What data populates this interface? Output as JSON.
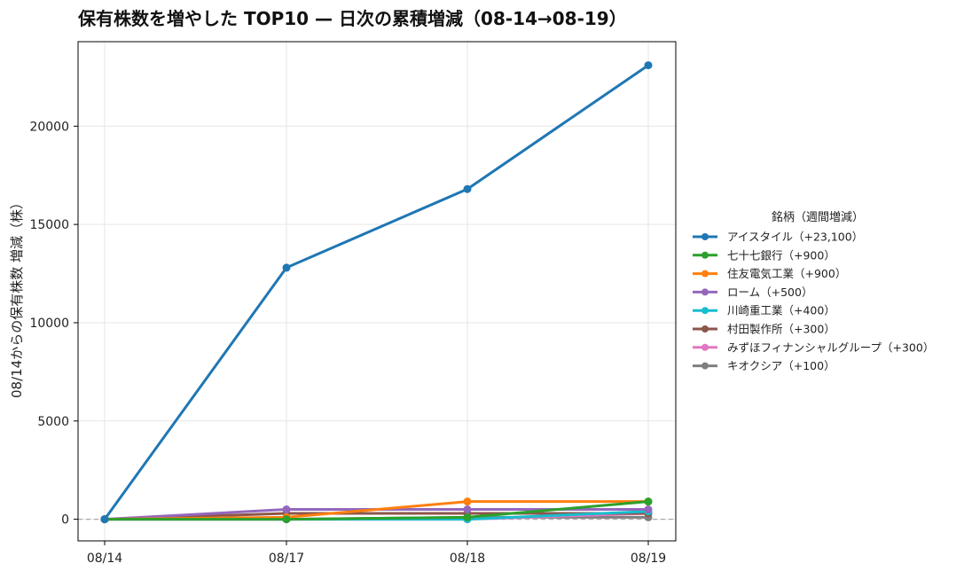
{
  "chart_data": {
    "type": "line",
    "title": "保有株数を増やした TOP10 — 日次の累積増減（08-14→08-19）",
    "xlabel": "",
    "ylabel": "08/14からの保有株数 増減（株）",
    "categories": [
      "08/14",
      "08/17",
      "08/18",
      "08/19"
    ],
    "y_ticks": [
      0,
      5000,
      10000,
      15000,
      20000
    ],
    "ylim": [
      -1100,
      24300
    ],
    "grid": true,
    "zero_line": true,
    "legend_title": "銘柄（週間増減）",
    "legend_placement": "right",
    "series": [
      {
        "name": "アイスタイル（+23,100）",
        "color": "#1f77b4",
        "values": [
          0,
          12800,
          16800,
          23100
        ]
      },
      {
        "name": "七十七銀行（+900）",
        "color": "#2ca02c",
        "values": [
          0,
          0,
          100,
          900
        ]
      },
      {
        "name": "住友電気工業（+900）",
        "color": "#ff7f0e",
        "values": [
          0,
          100,
          900,
          900
        ]
      },
      {
        "name": "ローム（+500）",
        "color": "#9467bd",
        "values": [
          0,
          500,
          500,
          500
        ]
      },
      {
        "name": "川崎重工業（+400）",
        "color": "#17becf",
        "values": [
          0,
          0,
          0,
          400
        ]
      },
      {
        "name": "村田製作所（+300）",
        "color": "#8c564b",
        "values": [
          0,
          300,
          300,
          300
        ]
      },
      {
        "name": "みずほフィナンシャルグループ（+300）",
        "color": "#e377c2",
        "values": [
          0,
          0,
          0,
          300
        ]
      },
      {
        "name": "キオクシア（+100）",
        "color": "#7f7f7f",
        "values": [
          0,
          0,
          100,
          100
        ]
      }
    ]
  }
}
